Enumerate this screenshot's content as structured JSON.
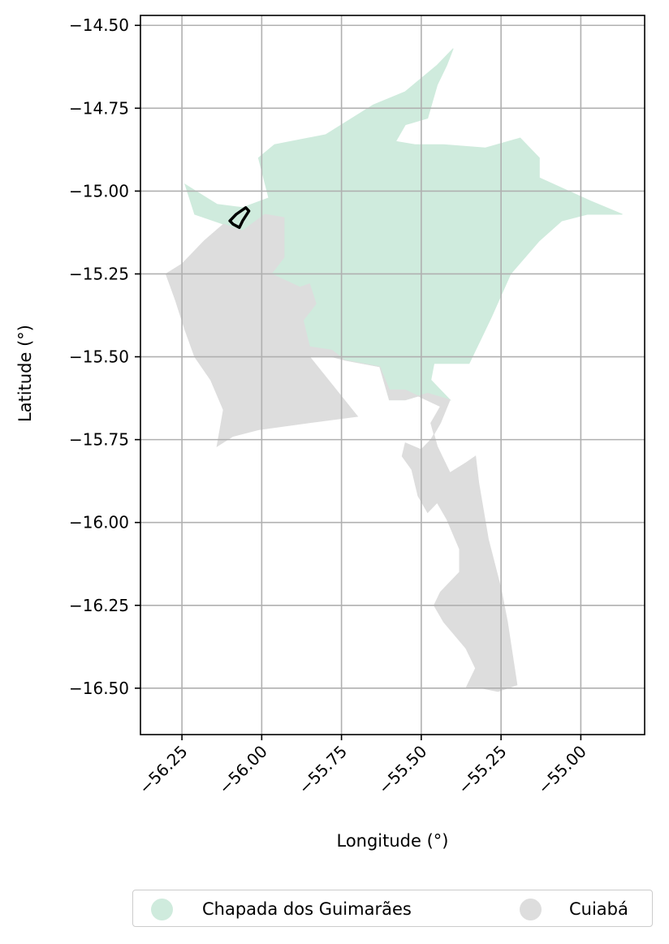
{
  "chart_data": {
    "type": "map",
    "xlabel": "Longitude (°)",
    "ylabel": "Latitude (°)",
    "xlim": [
      -56.38,
      -54.8
    ],
    "ylim": [
      -16.64,
      -14.47
    ],
    "x_ticks": [
      -56.25,
      -56.0,
      -55.75,
      -55.5,
      -55.25,
      -55.0
    ],
    "x_tick_labels": [
      "−56.25",
      "−56.00",
      "−55.75",
      "−55.50",
      "−55.25",
      "−55.00"
    ],
    "y_ticks": [
      -14.5,
      -14.75,
      -15.0,
      -15.25,
      -15.5,
      -15.75,
      -16.0,
      -16.25,
      -16.5
    ],
    "y_tick_labels": [
      "−14.50",
      "−14.75",
      "−15.00",
      "−15.25",
      "−15.50",
      "−15.75",
      "−16.00",
      "−16.25",
      "−16.50"
    ],
    "grid": true,
    "legend_position": "bottom-center",
    "regions": [
      {
        "name": "Chapada dos Guimarães",
        "color": "#cfebdd",
        "outline": [
          [
            -55.4,
            -14.57
          ],
          [
            -55.45,
            -14.62
          ],
          [
            -55.55,
            -14.7
          ],
          [
            -55.65,
            -14.74
          ],
          [
            -55.8,
            -14.83
          ],
          [
            -55.96,
            -14.86
          ],
          [
            -56.01,
            -14.9
          ],
          [
            -55.97,
            -15.05
          ],
          [
            -55.92,
            -15.0
          ],
          [
            -56.06,
            -15.05
          ],
          [
            -56.14,
            -15.04
          ],
          [
            -56.24,
            -14.98
          ],
          [
            -56.21,
            -15.07
          ],
          [
            -56.12,
            -15.1
          ],
          [
            -56.06,
            -15.12
          ],
          [
            -55.99,
            -15.07
          ],
          [
            -55.93,
            -15.08
          ],
          [
            -55.93,
            -15.2
          ],
          [
            -55.97,
            -15.25
          ],
          [
            -55.88,
            -15.29
          ],
          [
            -55.85,
            -15.28
          ],
          [
            -55.83,
            -15.34
          ],
          [
            -55.87,
            -15.39
          ],
          [
            -55.85,
            -15.47
          ],
          [
            -55.78,
            -15.48
          ],
          [
            -55.74,
            -15.51
          ],
          [
            -55.63,
            -15.53
          ],
          [
            -55.6,
            -15.63
          ],
          [
            -55.55,
            -15.63
          ],
          [
            -55.48,
            -15.61
          ],
          [
            -55.41,
            -15.63
          ],
          [
            -55.47,
            -15.57
          ],
          [
            -55.46,
            -15.52
          ],
          [
            -55.35,
            -15.52
          ],
          [
            -55.31,
            -15.44
          ],
          [
            -55.28,
            -15.38
          ],
          [
            -55.22,
            -15.25
          ],
          [
            -55.13,
            -15.15
          ],
          [
            -55.06,
            -15.09
          ],
          [
            -54.98,
            -15.07
          ],
          [
            -54.87,
            -15.07
          ],
          [
            -54.97,
            -15.03
          ],
          [
            -55.13,
            -14.96
          ],
          [
            -55.13,
            -14.9
          ],
          [
            -55.19,
            -14.84
          ],
          [
            -55.3,
            -14.87
          ],
          [
            -55.43,
            -14.86
          ],
          [
            -55.52,
            -14.86
          ],
          [
            -55.58,
            -14.85
          ],
          [
            -55.55,
            -14.8
          ],
          [
            -55.48,
            -14.78
          ],
          [
            -55.45,
            -14.68
          ],
          [
            -55.42,
            -14.62
          ]
        ]
      },
      {
        "name": "Cuiabá",
        "color": "#dddddd",
        "outline": [
          [
            -56.06,
            -15.12
          ],
          [
            -55.99,
            -15.07
          ],
          [
            -55.93,
            -15.08
          ],
          [
            -55.93,
            -15.2
          ],
          [
            -55.97,
            -15.25
          ],
          [
            -55.88,
            -15.29
          ],
          [
            -55.85,
            -15.28
          ],
          [
            -55.83,
            -15.34
          ],
          [
            -55.87,
            -15.39
          ],
          [
            -55.85,
            -15.47
          ],
          [
            -55.78,
            -15.48
          ],
          [
            -55.74,
            -15.51
          ],
          [
            -55.63,
            -15.53
          ],
          [
            -55.6,
            -15.63
          ],
          [
            -55.55,
            -15.63
          ],
          [
            -55.48,
            -15.61
          ],
          [
            -55.41,
            -15.63
          ],
          [
            -55.44,
            -15.7
          ],
          [
            -55.47,
            -15.75
          ],
          [
            -55.5,
            -15.78
          ],
          [
            -55.55,
            -15.76
          ],
          [
            -55.56,
            -15.8
          ],
          [
            -55.53,
            -15.84
          ],
          [
            -55.51,
            -15.92
          ],
          [
            -55.48,
            -15.97
          ],
          [
            -55.45,
            -15.94
          ],
          [
            -55.42,
            -15.99
          ],
          [
            -55.38,
            -16.08
          ],
          [
            -55.38,
            -16.15
          ],
          [
            -55.44,
            -16.21
          ],
          [
            -55.46,
            -16.25
          ],
          [
            -55.43,
            -16.3
          ],
          [
            -55.36,
            -16.38
          ],
          [
            -55.33,
            -16.44
          ],
          [
            -55.36,
            -16.5
          ],
          [
            -55.31,
            -16.5
          ],
          [
            -55.26,
            -16.51
          ],
          [
            -55.2,
            -16.49
          ],
          [
            -55.23,
            -16.3
          ],
          [
            -55.25,
            -16.2
          ],
          [
            -55.29,
            -16.05
          ],
          [
            -55.32,
            -15.88
          ],
          [
            -55.33,
            -15.8
          ],
          [
            -55.36,
            -15.82
          ],
          [
            -55.41,
            -15.85
          ],
          [
            -55.45,
            -15.77
          ],
          [
            -55.47,
            -15.7
          ],
          [
            -55.44,
            -15.65
          ],
          [
            -55.55,
            -15.6
          ],
          [
            -55.6,
            -15.6
          ],
          [
            -55.63,
            -15.53
          ],
          [
            -55.74,
            -15.51
          ],
          [
            -55.78,
            -15.5
          ],
          [
            -55.85,
            -15.5
          ],
          [
            -55.7,
            -15.68
          ],
          [
            -55.86,
            -15.7
          ],
          [
            -56.01,
            -15.72
          ],
          [
            -56.09,
            -15.74
          ],
          [
            -56.14,
            -15.77
          ],
          [
            -56.12,
            -15.66
          ],
          [
            -56.16,
            -15.57
          ],
          [
            -56.21,
            -15.5
          ],
          [
            -56.24,
            -15.42
          ],
          [
            -56.27,
            -15.33
          ],
          [
            -56.3,
            -15.25
          ],
          [
            -56.25,
            -15.22
          ],
          [
            -56.18,
            -15.15
          ],
          [
            -56.12,
            -15.1
          ]
        ]
      }
    ],
    "highlight": {
      "color": "#000000",
      "outline": [
        [
          -56.1,
          -15.09
        ],
        [
          -56.08,
          -15.07
        ],
        [
          -56.05,
          -15.05
        ],
        [
          -56.04,
          -15.06
        ],
        [
          -56.06,
          -15.09
        ],
        [
          -56.07,
          -15.11
        ],
        [
          -56.09,
          -15.1
        ]
      ]
    }
  },
  "legend": {
    "items": [
      {
        "label": "Chapada dos Guimarães",
        "color": "#cfebdd"
      },
      {
        "label": "Cuiabá",
        "color": "#dddddd"
      }
    ]
  }
}
